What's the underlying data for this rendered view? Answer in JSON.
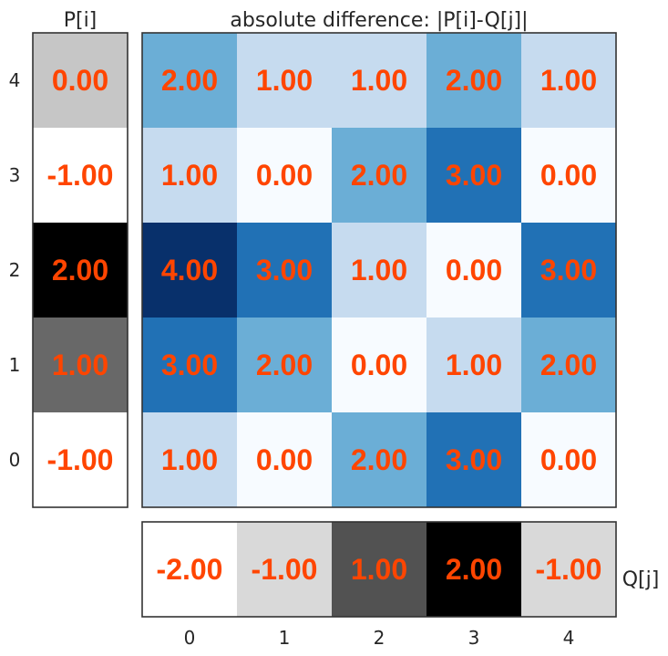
{
  "chart_data": [
    {
      "type": "heatmap",
      "title": "absolute difference: |P[i]-Q[j]|",
      "x_ticks": [
        "0",
        "1",
        "2",
        "3",
        "4"
      ],
      "y_ticks": [
        "0",
        "1",
        "2",
        "3",
        "4"
      ],
      "colormap": "Blues",
      "value_range": [
        0,
        4
      ],
      "grid": false,
      "rows": [
        {
          "i": "0",
          "values": [
            1.0,
            0.0,
            2.0,
            3.0,
            0.0
          ],
          "labels": [
            "1.00",
            "0.00",
            "2.00",
            "3.00",
            "0.00"
          ]
        },
        {
          "i": "1",
          "values": [
            3.0,
            2.0,
            0.0,
            1.0,
            2.0
          ],
          "labels": [
            "3.00",
            "2.00",
            "0.00",
            "1.00",
            "2.00"
          ]
        },
        {
          "i": "2",
          "values": [
            4.0,
            3.0,
            1.0,
            0.0,
            3.0
          ],
          "labels": [
            "4.00",
            "3.00",
            "1.00",
            "0.00",
            "3.00"
          ]
        },
        {
          "i": "3",
          "values": [
            1.0,
            0.0,
            2.0,
            3.0,
            0.0
          ],
          "labels": [
            "1.00",
            "0.00",
            "2.00",
            "3.00",
            "0.00"
          ]
        },
        {
          "i": "4",
          "values": [
            2.0,
            1.0,
            1.0,
            2.0,
            1.0
          ],
          "labels": [
            "2.00",
            "1.00",
            "1.00",
            "2.00",
            "1.00"
          ]
        }
      ]
    },
    {
      "type": "heatmap",
      "title": "P[i]",
      "colormap": "Greys",
      "value_range": [
        -1,
        2
      ],
      "values": [
        -1.0,
        1.0,
        2.0,
        -1.0,
        0.0
      ],
      "labels": [
        "-1.00",
        "1.00",
        "2.00",
        "-1.00",
        "0.00"
      ]
    },
    {
      "type": "heatmap",
      "title": "Q[j]",
      "colormap": "Greys",
      "value_range": [
        -2,
        2
      ],
      "values": [
        -2.0,
        -1.0,
        1.0,
        2.0,
        -1.0
      ],
      "labels": [
        "-2.00",
        "-1.00",
        "1.00",
        "2.00",
        "-1.00"
      ]
    }
  ],
  "colors": {
    "annotation": "#ff4500",
    "frame": "#333333",
    "text": "#262626"
  }
}
